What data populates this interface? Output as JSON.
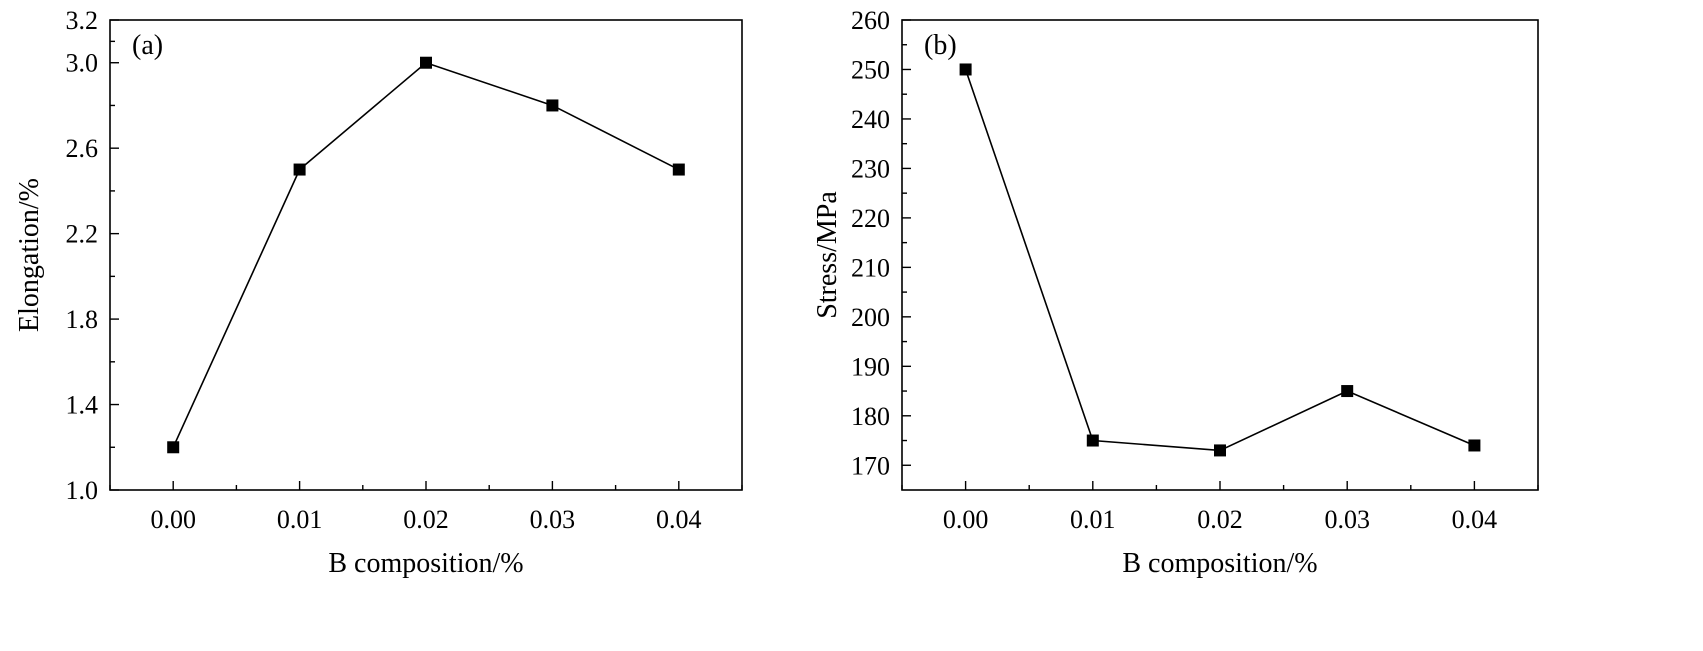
{
  "chart_data": [
    {
      "type": "line",
      "panel_label": "(a)",
      "xlabel": "B composition/%",
      "ylabel": "Elongation/%",
      "x": [
        0.0,
        0.01,
        0.02,
        0.03,
        0.04
      ],
      "x_tick_labels": [
        "0.00",
        "0.01",
        "0.02",
        "0.03",
        "0.04"
      ],
      "xlim": [
        -0.005,
        0.045
      ],
      "y_ticks": [
        1.0,
        1.4,
        1.8,
        2.2,
        2.6,
        3.0,
        3.2
      ],
      "y_tick_labels": [
        "1.0",
        "1.4",
        "1.8",
        "2.2",
        "2.6",
        "3.0",
        "3.2"
      ],
      "ylim": [
        1.0,
        3.2
      ],
      "series": [
        {
          "values": [
            1.2,
            2.5,
            3.0,
            2.8,
            2.5
          ],
          "marker": "square",
          "color": "#000000"
        }
      ],
      "grid": false
    },
    {
      "type": "line",
      "panel_label": "(b)",
      "xlabel": "B composition/%",
      "ylabel": "Stress/MPa",
      "x": [
        0.0,
        0.01,
        0.02,
        0.03,
        0.04
      ],
      "x_tick_labels": [
        "0.00",
        "0.01",
        "0.02",
        "0.03",
        "0.04"
      ],
      "xlim": [
        -0.005,
        0.045
      ],
      "y_ticks": [
        170,
        180,
        190,
        200,
        210,
        220,
        230,
        240,
        250,
        260
      ],
      "y_tick_labels": [
        "170",
        "180",
        "190",
        "200",
        "210",
        "220",
        "230",
        "240",
        "250",
        "260"
      ],
      "ylim": [
        165,
        260
      ],
      "series": [
        {
          "values": [
            250,
            175,
            173,
            185,
            174
          ],
          "marker": "square",
          "color": "#000000"
        }
      ],
      "grid": false
    }
  ]
}
